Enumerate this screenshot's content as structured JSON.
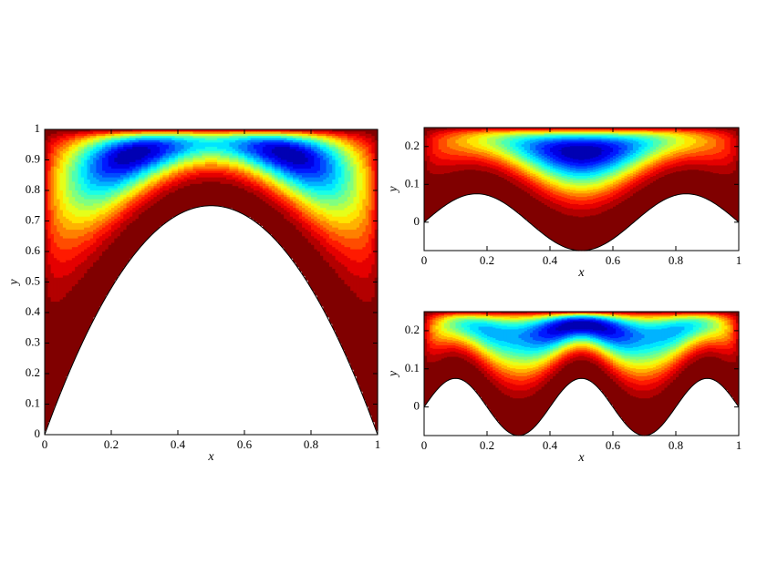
{
  "chart_data": [
    {
      "type": "contour",
      "xlabel": "x",
      "ylabel": "y",
      "xlim": [
        0,
        1
      ],
      "ylim": [
        0,
        1
      ],
      "xticks": [
        0,
        0.2,
        0.4,
        0.6,
        0.8,
        1
      ],
      "yticks": [
        0,
        0.1,
        0.2,
        0.3,
        0.4,
        0.5,
        0.6,
        0.7,
        0.8,
        0.9,
        1
      ]
    },
    {
      "type": "contour",
      "xlabel": "x",
      "ylabel": "y",
      "xlim": [
        0,
        1
      ],
      "ylim": [
        -0.075,
        0.25
      ],
      "xticks": [
        0,
        0.2,
        0.4,
        0.6,
        0.8,
        1
      ],
      "yticks": [
        0,
        0.1,
        0.2
      ]
    },
    {
      "type": "contour",
      "xlabel": "x",
      "ylabel": "y",
      "xlim": [
        0,
        1
      ],
      "ylim": [
        -0.075,
        0.25
      ],
      "xticks": [
        0,
        0.2,
        0.4,
        0.6,
        0.8,
        1
      ],
      "yticks": [
        0,
        0.1,
        0.2
      ]
    }
  ]
}
